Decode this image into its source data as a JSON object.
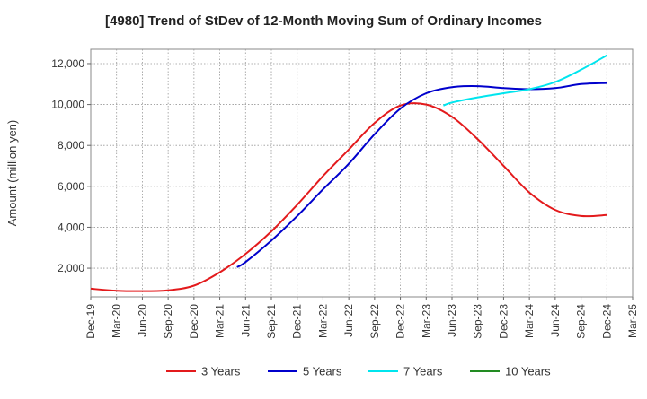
{
  "chart_data": {
    "type": "line",
    "title": "[4980]  Trend of StDev of 12-Month Moving Sum of Ordinary Incomes",
    "xlabel": "",
    "ylabel": "Amount (million yen)",
    "ylim": [
      600,
      12700
    ],
    "yticks": [
      2000,
      4000,
      6000,
      8000,
      10000,
      12000
    ],
    "ytick_labels": [
      "2,000",
      "4,000",
      "6,000",
      "8,000",
      "10,000",
      "12,000"
    ],
    "xticks": [
      "Dec-19",
      "Mar-20",
      "Jun-20",
      "Sep-20",
      "Dec-20",
      "Mar-21",
      "Jun-21",
      "Sep-21",
      "Dec-21",
      "Mar-22",
      "Jun-22",
      "Sep-22",
      "Dec-22",
      "Mar-23",
      "Jun-23",
      "Sep-23",
      "Dec-23",
      "Mar-24",
      "Jun-24",
      "Sep-24",
      "Dec-24",
      "Mar-25"
    ],
    "grid": true,
    "legend_position": "bottom",
    "series": [
      {
        "name": "3 Years",
        "color": "#e31a1c",
        "points": [
          [
            "Dec-19",
            1000
          ],
          [
            "Mar-20",
            900
          ],
          [
            "Jun-20",
            880
          ],
          [
            "Sep-20",
            920
          ],
          [
            "Dec-20",
            1150
          ],
          [
            "Mar-21",
            1800
          ],
          [
            "Jun-21",
            2700
          ],
          [
            "Sep-21",
            3800
          ],
          [
            "Dec-21",
            5100
          ],
          [
            "Mar-22",
            6500
          ],
          [
            "Jun-22",
            7800
          ],
          [
            "Sep-22",
            9100
          ],
          [
            "Dec-22",
            9950
          ],
          [
            "Mar-23",
            10000
          ],
          [
            "Jun-23",
            9400
          ],
          [
            "Sep-23",
            8300
          ],
          [
            "Dec-23",
            7000
          ],
          [
            "Mar-24",
            5700
          ],
          [
            "Jun-24",
            4850
          ],
          [
            "Sep-24",
            4550
          ],
          [
            "Dec-24",
            4600
          ]
        ]
      },
      {
        "name": "5 Years",
        "color": "#0000cc",
        "points": [
          [
            "May-21",
            2050
          ],
          [
            "Jun-21",
            2300
          ],
          [
            "Sep-21",
            3350
          ],
          [
            "Dec-21",
            4550
          ],
          [
            "Mar-22",
            5850
          ],
          [
            "Jun-22",
            7100
          ],
          [
            "Sep-22",
            8550
          ],
          [
            "Dec-22",
            9800
          ],
          [
            "Mar-23",
            10550
          ],
          [
            "Jun-23",
            10850
          ],
          [
            "Sep-23",
            10900
          ],
          [
            "Dec-23",
            10800
          ],
          [
            "Mar-24",
            10750
          ],
          [
            "Jun-24",
            10800
          ],
          [
            "Sep-24",
            11000
          ],
          [
            "Dec-24",
            11050
          ]
        ]
      },
      {
        "name": "7 Years",
        "color": "#00e5ee",
        "points": [
          [
            "May-23",
            9950
          ],
          [
            "Jun-23",
            10100
          ],
          [
            "Sep-23",
            10350
          ],
          [
            "Dec-23",
            10550
          ],
          [
            "Mar-24",
            10750
          ],
          [
            "Jun-24",
            11100
          ],
          [
            "Sep-24",
            11700
          ],
          [
            "Dec-24",
            12400
          ]
        ]
      },
      {
        "name": "10 Years",
        "color": "#228b22",
        "points": []
      }
    ]
  }
}
